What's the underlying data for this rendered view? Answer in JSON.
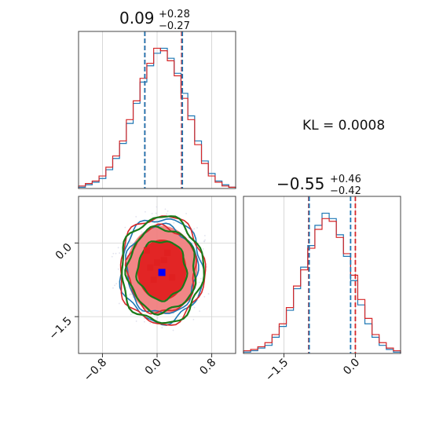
{
  "colors": {
    "blue": "#1f77b4",
    "red": "#d62728",
    "green": "#1a7a1a",
    "red_fill_light": "#f08080",
    "red_fill_dark": "#e02020",
    "marker_blue": "#0000ff",
    "grid": "#cfcfcf"
  },
  "kl": {
    "label": "KL = 0.0008"
  },
  "chart_data": [
    {
      "type": "histogram",
      "panel": "param-1-marginal",
      "title": {
        "main": "0.09",
        "sup": "+0.28",
        "sub": "−0.27"
      },
      "x_range": [
        -1.15,
        1.15
      ],
      "grid_x": [
        -0.8,
        0.0,
        0.8
      ],
      "quantiles": {
        "blue": [
          -0.18,
          0.37
        ],
        "red": [
          -0.18,
          0.36
        ]
      },
      "series": [
        {
          "color": "blue",
          "bin_edges": [
            -1.15,
            -1.05,
            -0.95,
            -0.85,
            -0.75,
            -0.65,
            -0.55,
            -0.45,
            -0.35,
            -0.25,
            -0.15,
            -0.05,
            0.05,
            0.15,
            0.25,
            0.35,
            0.45,
            0.55,
            0.65,
            0.75,
            0.85,
            0.95,
            1.05,
            1.15
          ],
          "counts": [
            1,
            3,
            5,
            8,
            15,
            24,
            36,
            52,
            68,
            85,
            98,
            108,
            112,
            104,
            92,
            76,
            58,
            38,
            22,
            12,
            6,
            3,
            1
          ]
        },
        {
          "color": "red",
          "bin_edges": [
            -1.15,
            -1.05,
            -0.95,
            -0.85,
            -0.75,
            -0.65,
            -0.55,
            -0.45,
            -0.35,
            -0.25,
            -0.15,
            -0.05,
            0.05,
            0.15,
            0.25,
            0.35,
            0.45,
            0.55,
            0.65,
            0.75,
            0.85,
            0.95,
            1.05,
            1.15
          ],
          "counts": [
            2,
            4,
            6,
            10,
            17,
            26,
            38,
            55,
            70,
            88,
            100,
            112,
            110,
            102,
            90,
            72,
            55,
            35,
            20,
            10,
            5,
            2,
            1
          ]
        }
      ]
    },
    {
      "type": "histogram",
      "panel": "param-2-marginal",
      "title": {
        "main": "−0.55",
        "sup": "+0.46",
        "sub": "−0.42"
      },
      "x_range": [
        -2.35,
        0.95
      ],
      "grid_x": [
        -1.5,
        0.0
      ],
      "tick_labels": [
        "−1.5",
        "0.0"
      ],
      "quantiles": {
        "blue": [
          -0.97,
          -0.1
        ],
        "red": [
          -0.98,
          0.0
        ]
      },
      "series": [
        {
          "color": "blue",
          "bin_edges": [
            -2.35,
            -2.2,
            -2.05,
            -1.9,
            -1.75,
            -1.6,
            -1.45,
            -1.3,
            -1.15,
            -1.0,
            -0.85,
            -0.7,
            -0.55,
            -0.4,
            -0.25,
            -0.1,
            0.05,
            0.2,
            0.35,
            0.5,
            0.65,
            0.8,
            0.95
          ],
          "counts": [
            1,
            2,
            4,
            6,
            12,
            20,
            32,
            48,
            64,
            80,
            95,
            104,
            100,
            88,
            72,
            54,
            36,
            22,
            12,
            6,
            3,
            1
          ]
        },
        {
          "color": "red",
          "bin_edges": [
            -2.35,
            -2.2,
            -2.05,
            -1.9,
            -1.75,
            -1.6,
            -1.45,
            -1.3,
            -1.15,
            -1.0,
            -0.85,
            -0.7,
            -0.55,
            -0.4,
            -0.25,
            -0.1,
            0.05,
            0.2,
            0.35,
            0.5,
            0.65,
            0.8,
            0.95
          ],
          "counts": [
            2,
            3,
            5,
            8,
            14,
            22,
            34,
            50,
            62,
            78,
            92,
            100,
            98,
            86,
            74,
            58,
            40,
            26,
            14,
            8,
            4,
            2
          ]
        }
      ]
    },
    {
      "type": "contour",
      "panel": "joint-density",
      "x_range": [
        -1.15,
        1.15
      ],
      "y_range": [
        -2.25,
        0.95
      ],
      "x_ticks": [
        -0.8,
        0.0,
        0.8
      ],
      "x_tick_labels": [
        "−0.8",
        "0.0",
        "0.8"
      ],
      "y_ticks": [
        -1.5,
        0.0
      ],
      "y_tick_labels": [
        "−1.5",
        "0.0"
      ],
      "center": {
        "x": 0.07,
        "y": -0.55
      },
      "marker": {
        "x": 0.07,
        "y": -0.6
      },
      "levels": [
        {
          "color": "blue",
          "rx": 0.6,
          "ry": 1.06
        },
        {
          "color": "red",
          "rx": 0.62,
          "ry": 1.1
        },
        {
          "color": "green",
          "rx": 0.6,
          "ry": 1.08
        },
        {
          "color": "blue",
          "rx": 0.52,
          "ry": 0.9
        },
        {
          "color": "red",
          "rx": 0.5,
          "ry": 0.88
        },
        {
          "color": "green",
          "rx": 0.5,
          "ry": 0.86
        },
        {
          "color": "green",
          "rx": 0.36,
          "ry": 0.6
        }
      ],
      "filled_regions": [
        {
          "color": "red_fill_light",
          "rx": 0.52,
          "ry": 0.9
        },
        {
          "color": "red_fill_dark",
          "rx": 0.36,
          "ry": 0.62
        }
      ],
      "red_points": [
        {
          "x": -0.15,
          "y": -0.15
        },
        {
          "x": 0.15,
          "y": -0.2
        },
        {
          "x": -0.1,
          "y": -0.5
        },
        {
          "x": 0.0,
          "y": -0.4
        },
        {
          "x": -0.05,
          "y": -0.75
        },
        {
          "x": 0.22,
          "y": -0.7
        },
        {
          "x": 0.1,
          "y": -0.35
        }
      ]
    }
  ]
}
